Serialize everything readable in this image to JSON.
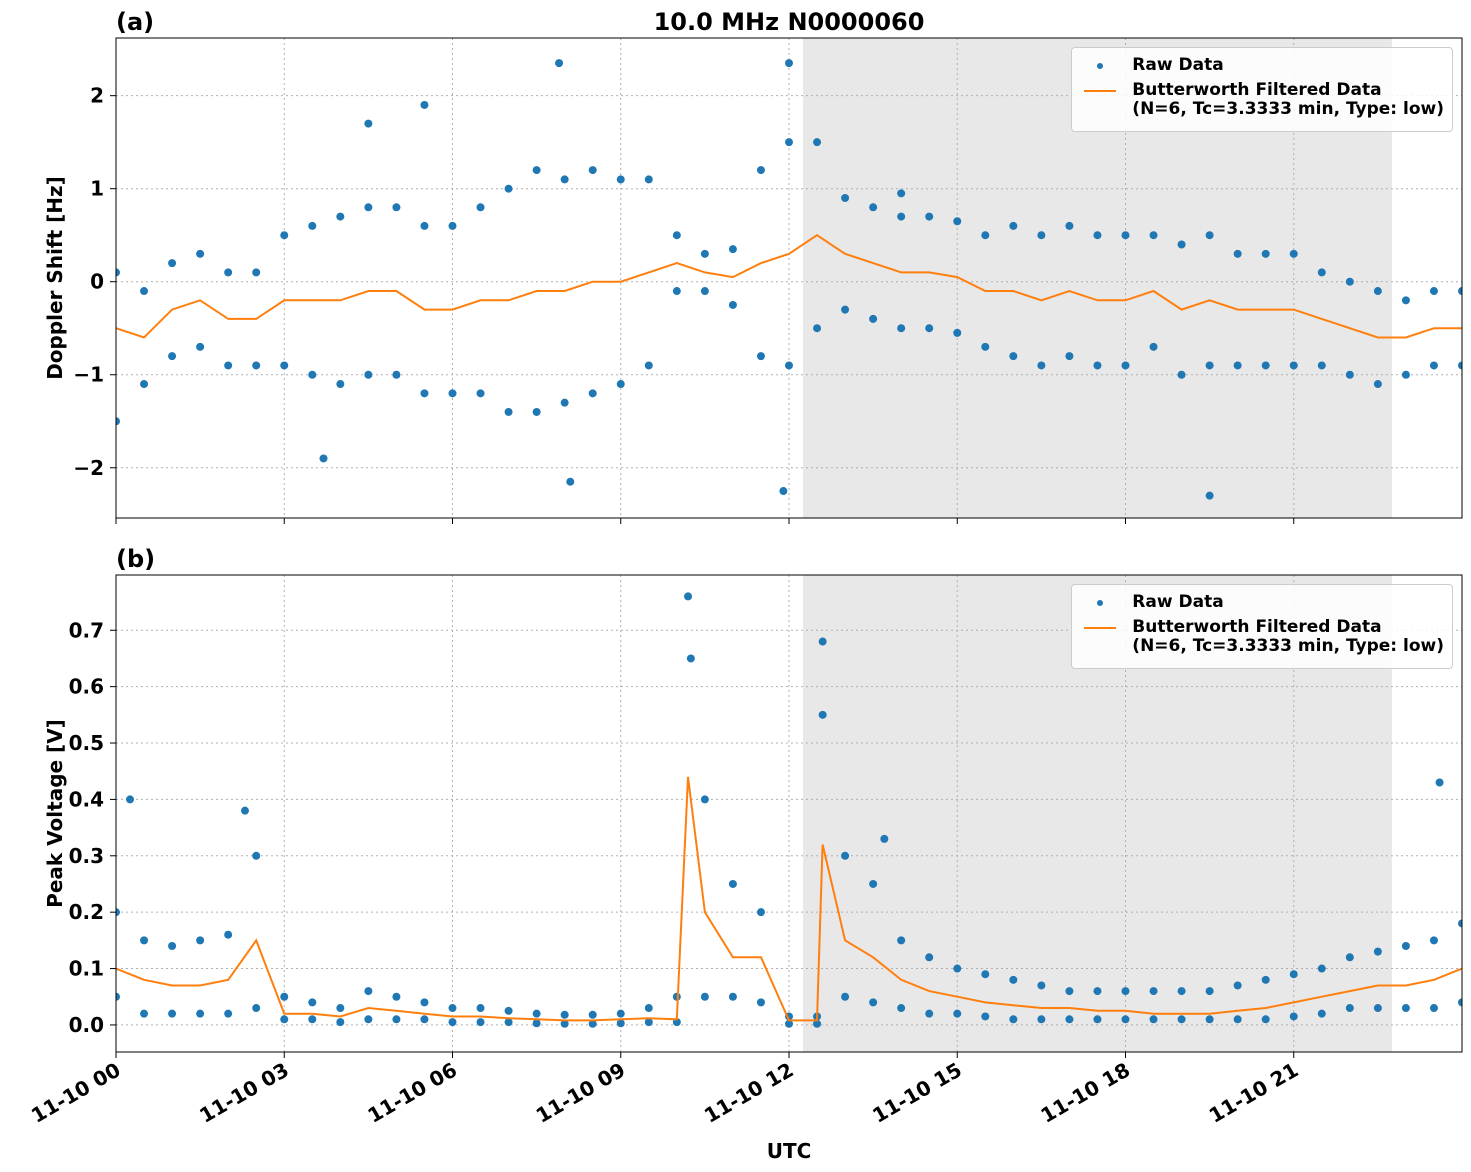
{
  "chart_data": [
    {
      "type": "scatter",
      "panel_label": "(a)",
      "title": "10.0 MHz N0000060",
      "ylabel": "Doppler Shift [Hz]",
      "xlim": [
        0,
        24
      ],
      "xticks": [
        0,
        3,
        6,
        9,
        12,
        15,
        18,
        21
      ],
      "ylim": [
        -2.54,
        2.62
      ],
      "yticks": [
        {
          "value": -2,
          "label": "−2"
        },
        {
          "value": -1,
          "label": "−1"
        },
        0,
        1,
        2
      ],
      "grid": true,
      "legend": "upper right",
      "shade": [
        12.25,
        22.75
      ],
      "shade_color": "#e8e8e8",
      "series": [
        {
          "name": "Raw Data",
          "color": "#1f77b4",
          "mode": "markers",
          "x": [
            0,
            0,
            0.5,
            0.5,
            1,
            1,
            1.5,
            1.5,
            2,
            2,
            2.5,
            2.5,
            3,
            3,
            3.5,
            3.5,
            4,
            4,
            4.5,
            4.5,
            5,
            5,
            5.5,
            5.5,
            6,
            6,
            6.5,
            6.5,
            7,
            7,
            7.5,
            7.5,
            8,
            8,
            8.5,
            8.5,
            9,
            9,
            9.5,
            9.5,
            10,
            10,
            10.5,
            10.5,
            11,
            11,
            11.5,
            11.5,
            12,
            12,
            12.5,
            12.5,
            13,
            13,
            13.5,
            13.5,
            14,
            14,
            14.5,
            14.5,
            15,
            15,
            15.5,
            15.5,
            16,
            16,
            16.5,
            16.5,
            17,
            17,
            17.5,
            17.5,
            18,
            18,
            18.5,
            18.5,
            19,
            19,
            19.5,
            19.5,
            20,
            20,
            20.5,
            20.5,
            21,
            21,
            21.5,
            21.5,
            22,
            22,
            22.5,
            22.5,
            23,
            23,
            23.5,
            23.5,
            24,
            24,
            7.9,
            12,
            8.1,
            11.9,
            19.5,
            5.5,
            4.5,
            14,
            3.7
          ],
          "values": [
            0.1,
            -1.5,
            -0.1,
            -1.1,
            0.2,
            -0.8,
            0.3,
            -0.7,
            0.1,
            -0.9,
            0.1,
            -0.9,
            0.5,
            -0.9,
            0.6,
            -1.0,
            0.7,
            -1.1,
            0.8,
            -1.0,
            0.8,
            -1.0,
            0.6,
            -1.2,
            0.6,
            -1.2,
            0.8,
            -1.2,
            1.0,
            -1.4,
            1.2,
            -1.4,
            1.1,
            -1.3,
            1.2,
            -1.2,
            1.1,
            -1.1,
            1.1,
            -0.9,
            0.5,
            -0.1,
            0.3,
            -0.1,
            0.35,
            -0.25,
            1.2,
            -0.8,
            1.5,
            -0.9,
            1.5,
            -0.5,
            0.9,
            -0.3,
            0.8,
            -0.4,
            0.7,
            -0.5,
            0.7,
            -0.5,
            0.65,
            -0.55,
            0.5,
            -0.7,
            0.6,
            -0.8,
            0.5,
            -0.9,
            0.6,
            -0.8,
            0.5,
            -0.9,
            0.5,
            -0.9,
            0.5,
            -0.7,
            0.4,
            -1.0,
            0.5,
            -0.9,
            0.3,
            -0.9,
            0.3,
            -0.9,
            0.3,
            -0.9,
            0.1,
            -0.9,
            0.0,
            -1.0,
            -0.1,
            -1.1,
            -0.2,
            -1.0,
            -0.1,
            -0.9,
            -0.1,
            -0.9,
            2.35,
            2.35,
            -2.15,
            -2.25,
            -2.3,
            1.9,
            1.7,
            0.95,
            -1.9
          ]
        },
        {
          "name": "Butterworth Filtered Data\n(N=6, Tc=3.3333 min, Type: low)",
          "color": "#ff7f0e",
          "mode": "line",
          "x": [
            0,
            0.5,
            1,
            1.5,
            2,
            2.5,
            3,
            3.5,
            4,
            4.5,
            5,
            5.5,
            6,
            6.5,
            7,
            7.5,
            8,
            8.5,
            9,
            9.5,
            10,
            10.5,
            11,
            11.5,
            12,
            12.5,
            13,
            13.5,
            14,
            14.5,
            15,
            15.5,
            16,
            16.5,
            17,
            17.5,
            18,
            18.5,
            19,
            19.5,
            20,
            20.5,
            21,
            21.5,
            22,
            22.5,
            23,
            23.5,
            24
          ],
          "values": [
            -0.5,
            -0.6,
            -0.3,
            -0.2,
            -0.4,
            -0.4,
            -0.2,
            -0.2,
            -0.2,
            -0.1,
            -0.1,
            -0.3,
            -0.3,
            -0.2,
            -0.2,
            -0.1,
            -0.1,
            0.0,
            0.0,
            0.1,
            0.2,
            0.1,
            0.05,
            0.2,
            0.3,
            0.5,
            0.3,
            0.2,
            0.1,
            0.1,
            0.05,
            -0.1,
            -0.1,
            -0.2,
            -0.1,
            -0.2,
            -0.2,
            -0.1,
            -0.3,
            -0.2,
            -0.3,
            -0.3,
            -0.3,
            -0.4,
            -0.5,
            -0.6,
            -0.6,
            -0.5,
            -0.5
          ]
        }
      ]
    },
    {
      "type": "scatter",
      "panel_label": "(b)",
      "ylabel": "Peak Voltage [V]",
      "xlabel": "UTC",
      "xlim": [
        0,
        24
      ],
      "xticks": [
        {
          "value": 0,
          "label": "11-10 00"
        },
        {
          "value": 3,
          "label": "11-10 03"
        },
        {
          "value": 6,
          "label": "11-10 06"
        },
        {
          "value": 9,
          "label": "11-10 09"
        },
        {
          "value": 12,
          "label": "11-10 12"
        },
        {
          "value": 15,
          "label": "11-10 15"
        },
        {
          "value": 18,
          "label": "11-10 18"
        },
        {
          "value": 21,
          "label": "11-10 21"
        }
      ],
      "ylim": [
        -0.048,
        0.798
      ],
      "yticks": [
        {
          "value": 0,
          "label": "0.0"
        },
        0.1,
        0.2,
        0.3,
        0.4,
        0.5,
        0.6,
        0.7
      ],
      "grid": true,
      "legend": "upper right",
      "shade": [
        12.25,
        22.75
      ],
      "shade_color": "#e8e8e8",
      "series": [
        {
          "name": "Raw Data",
          "color": "#1f77b4",
          "mode": "markers",
          "x": [
            0,
            0,
            0.5,
            0.5,
            1,
            1,
            1.5,
            1.5,
            2,
            2,
            2.5,
            2.5,
            3,
            3,
            3.5,
            3.5,
            4,
            4,
            4.5,
            4.5,
            5,
            5,
            5.5,
            5.5,
            6,
            6,
            6.5,
            6.5,
            7,
            7,
            7.5,
            7.5,
            8,
            8,
            8.5,
            8.5,
            9,
            9,
            9.5,
            9.5,
            10,
            10,
            10.5,
            10.5,
            11,
            11,
            11.5,
            11.5,
            12,
            12,
            12.5,
            12.5,
            13,
            13,
            13.5,
            13.5,
            14,
            14,
            14.5,
            14.5,
            15,
            15,
            15.5,
            15.5,
            16,
            16,
            16.5,
            16.5,
            17,
            17,
            17.5,
            17.5,
            18,
            18,
            18.5,
            18.5,
            19,
            19,
            19.5,
            19.5,
            20,
            20,
            20.5,
            20.5,
            21,
            21,
            21.5,
            21.5,
            22,
            22,
            22.5,
            22.5,
            23,
            23,
            23.5,
            23.5,
            24,
            24,
            0.25,
            2.3,
            10.2,
            10.25,
            12.6,
            12.6,
            13.7,
            23.6
          ],
          "values": [
            0.2,
            0.05,
            0.15,
            0.02,
            0.14,
            0.02,
            0.15,
            0.02,
            0.16,
            0.02,
            0.3,
            0.03,
            0.05,
            0.01,
            0.04,
            0.01,
            0.03,
            0.005,
            0.06,
            0.01,
            0.05,
            0.01,
            0.04,
            0.01,
            0.03,
            0.005,
            0.03,
            0.005,
            0.025,
            0.005,
            0.02,
            0.003,
            0.018,
            0.002,
            0.018,
            0.002,
            0.02,
            0.003,
            0.03,
            0.005,
            0.05,
            0.005,
            0.4,
            0.05,
            0.25,
            0.05,
            0.2,
            0.04,
            0.015,
            0.002,
            0.015,
            0.002,
            0.3,
            0.05,
            0.25,
            0.04,
            0.15,
            0.03,
            0.12,
            0.02,
            0.1,
            0.02,
            0.09,
            0.015,
            0.08,
            0.01,
            0.07,
            0.01,
            0.06,
            0.01,
            0.06,
            0.01,
            0.06,
            0.01,
            0.06,
            0.01,
            0.06,
            0.01,
            0.06,
            0.01,
            0.07,
            0.01,
            0.08,
            0.01,
            0.09,
            0.015,
            0.1,
            0.02,
            0.12,
            0.03,
            0.13,
            0.03,
            0.14,
            0.03,
            0.15,
            0.03,
            0.18,
            0.04,
            0.4,
            0.38,
            0.76,
            0.65,
            0.68,
            0.55,
            0.33,
            0.43
          ]
        },
        {
          "name": "Butterworth Filtered Data\n(N=6, Tc=3.3333 min, Type: low)",
          "color": "#ff7f0e",
          "mode": "line",
          "x": [
            0,
            0.5,
            1,
            1.5,
            2,
            2.5,
            3,
            3.5,
            4,
            4.5,
            5,
            5.5,
            6,
            6.5,
            7,
            7.5,
            8,
            8.5,
            9,
            9.5,
            10,
            10.2,
            10.5,
            11,
            11.5,
            12,
            12.5,
            12.6,
            13,
            13.5,
            14,
            14.5,
            15,
            15.5,
            16,
            16.5,
            17,
            17.5,
            18,
            18.5,
            19,
            19.5,
            20,
            20.5,
            21,
            21.5,
            22,
            22.5,
            23,
            23.5,
            24
          ],
          "values": [
            0.1,
            0.08,
            0.07,
            0.07,
            0.08,
            0.15,
            0.02,
            0.02,
            0.015,
            0.03,
            0.025,
            0.02,
            0.015,
            0.015,
            0.012,
            0.01,
            0.008,
            0.008,
            0.01,
            0.012,
            0.01,
            0.44,
            0.2,
            0.12,
            0.12,
            0.008,
            0.008,
            0.32,
            0.15,
            0.12,
            0.08,
            0.06,
            0.05,
            0.04,
            0.035,
            0.03,
            0.03,
            0.025,
            0.025,
            0.02,
            0.02,
            0.02,
            0.025,
            0.03,
            0.04,
            0.05,
            0.06,
            0.07,
            0.07,
            0.08,
            0.1
          ]
        }
      ]
    }
  ]
}
